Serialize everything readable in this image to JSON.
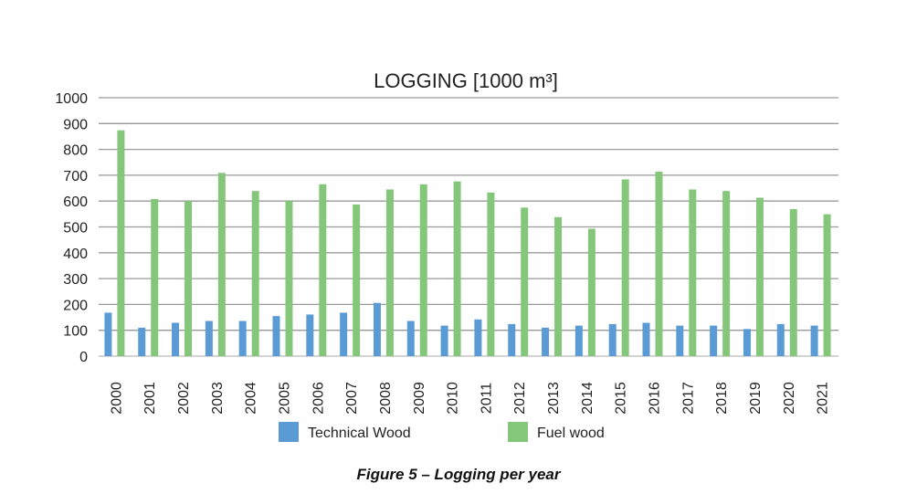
{
  "chart_data": {
    "type": "bar",
    "title": "LOGGING [1000 m³]",
    "xlabel": "",
    "ylabel": "",
    "ylim": [
      0,
      1000
    ],
    "yticks": [
      0,
      100,
      200,
      300,
      400,
      500,
      600,
      700,
      800,
      900,
      1000
    ],
    "grid": true,
    "legend_position": "bottom",
    "categories": [
      "2000",
      "2001",
      "2002",
      "2003",
      "2004",
      "2005",
      "2006",
      "2007",
      "2008",
      "2009",
      "2010",
      "2011",
      "2012",
      "2013",
      "2014",
      "2015",
      "2016",
      "2017",
      "2018",
      "2019",
      "2020",
      "2021"
    ],
    "series": [
      {
        "name": "Technical Wood",
        "color": "#5b9bd5",
        "values": [
          168,
          110,
          129,
          136,
          136,
          155,
          161,
          168,
          206,
          136,
          118,
          142,
          124,
          110,
          118,
          124,
          129,
          118,
          118,
          105,
          124,
          118
        ]
      },
      {
        "name": "Fuel wood",
        "color": "#85c77a",
        "values": [
          874,
          608,
          600,
          709,
          639,
          600,
          665,
          587,
          645,
          665,
          676,
          633,
          575,
          538,
          493,
          684,
          714,
          645,
          639,
          613,
          569,
          549
        ]
      }
    ]
  },
  "caption": "Figure 5 – Logging per year"
}
